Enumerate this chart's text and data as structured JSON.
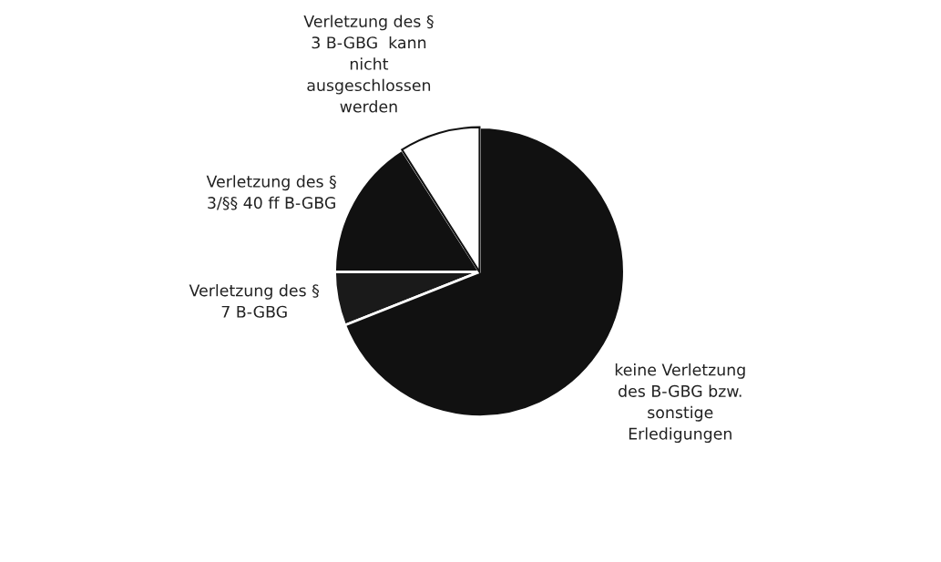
{
  "chart_data": {
    "type": "pie",
    "categories": [
      "Verletzung des §\n3 B-GBG  kann\nnicht\nausgeschlossen\nwerden",
      "Verletzung des §\n3/§§ 40 ff B-GBG",
      "Verletzung des §\n7 B-GBG",
      "keine Verletzung\ndes B-GBG bzw.\nsonstige\nErledigungen"
    ],
    "values": [
      9,
      16,
      6,
      69
    ],
    "colors": [
      "#ffffff",
      "#111111",
      "#1a1a1a",
      "#111111"
    ],
    "legend": false
  }
}
